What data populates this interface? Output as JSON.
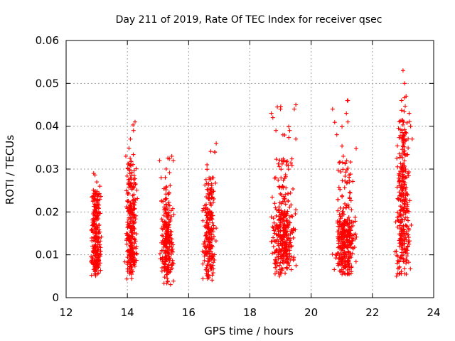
{
  "chart_data": {
    "type": "scatter",
    "title": "Day 211 of 2019, Rate Of TEC Index for receiver qsec",
    "xlabel": "GPS time / hours",
    "ylabel": "ROTI / TECUs",
    "xlim": [
      12,
      24
    ],
    "ylim": [
      0,
      0.06
    ],
    "xticks": [
      "12",
      "14",
      "16",
      "18",
      "20",
      "22",
      "24"
    ],
    "yticks": [
      "0",
      "0.01",
      "0.02",
      "0.03",
      "0.04",
      "0.05",
      "0.06"
    ],
    "grid": true,
    "marker": "+",
    "color": "#ff0000",
    "series": [
      {
        "name": "ROTI",
        "clusters": [
          {
            "x_range": [
              12.75,
              13.2
            ],
            "y_range": [
              0.005,
              0.03
            ],
            "core_range": [
              0.007,
              0.02
            ],
            "count": 240
          },
          {
            "x_range": [
              13.9,
              14.35
            ],
            "y_range": [
              0.004,
              0.042
            ],
            "core_range": [
              0.007,
              0.022
            ],
            "count": 260
          },
          {
            "x_range": [
              15.0,
              15.6
            ],
            "y_range": [
              0.003,
              0.034
            ],
            "core_range": [
              0.006,
              0.018
            ],
            "count": 240
          },
          {
            "x_range": [
              16.4,
              16.95
            ],
            "y_range": [
              0.004,
              0.036
            ],
            "core_range": [
              0.007,
              0.02
            ],
            "count": 220
          },
          {
            "x_range": [
              18.6,
              19.6
            ],
            "y_range": [
              0.005,
              0.045
            ],
            "core_range": [
              0.008,
              0.02
            ],
            "count": 340
          },
          {
            "x_range": [
              20.65,
              21.55
            ],
            "y_range": [
              0.005,
              0.046
            ],
            "core_range": [
              0.007,
              0.018
            ],
            "count": 320
          },
          {
            "x_range": [
              22.7,
              23.3
            ],
            "y_range": [
              0.005,
              0.053
            ],
            "core_range": [
              0.008,
              0.03
            ],
            "count": 300
          }
        ],
        "points": [
          [
            13.0,
            0.027
          ],
          [
            13.1,
            0.026
          ],
          [
            12.9,
            0.029
          ],
          [
            14.25,
            0.041
          ],
          [
            14.2,
            0.039
          ],
          [
            14.1,
            0.037
          ],
          [
            13.95,
            0.033
          ],
          [
            15.05,
            0.032
          ],
          [
            15.45,
            0.033
          ],
          [
            15.5,
            0.032
          ],
          [
            15.1,
            0.028
          ],
          [
            16.9,
            0.036
          ],
          [
            16.85,
            0.034
          ],
          [
            16.6,
            0.031
          ],
          [
            18.7,
            0.043
          ],
          [
            18.75,
            0.042
          ],
          [
            19.0,
            0.044
          ],
          [
            19.5,
            0.045
          ],
          [
            19.45,
            0.044
          ],
          [
            19.3,
            0.039
          ],
          [
            19.5,
            0.037
          ],
          [
            18.85,
            0.039
          ],
          [
            20.7,
            0.044
          ],
          [
            21.2,
            0.046
          ],
          [
            21.15,
            0.043
          ],
          [
            21.2,
            0.041
          ],
          [
            21.05,
            0.033
          ],
          [
            23.0,
            0.053
          ],
          [
            23.05,
            0.05
          ],
          [
            22.95,
            0.046
          ],
          [
            23.1,
            0.047
          ],
          [
            23.2,
            0.043
          ],
          [
            23.25,
            0.04
          ],
          [
            23.3,
            0.037
          ]
        ]
      }
    ]
  }
}
